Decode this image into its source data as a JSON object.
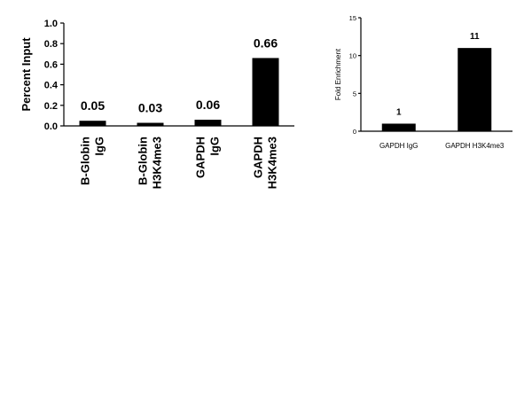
{
  "chart_data": [
    {
      "type": "bar",
      "title": "",
      "xlabel": "",
      "ylabel": "Percent Input",
      "ylim": [
        0,
        1.0
      ],
      "yticks": [
        "0.0",
        "0.2",
        "0.4",
        "0.6",
        "0.8",
        "1.0"
      ],
      "categories": [
        [
          "B-Globin",
          "IgG"
        ],
        [
          "B-Globin",
          "H3K4me3"
        ],
        [
          "GAPDH",
          "IgG"
        ],
        [
          "GAPDH",
          "H3K4me3"
        ]
      ],
      "values": [
        0.05,
        0.03,
        0.06,
        0.66
      ],
      "data_labels": [
        "0.05",
        "0.03",
        "0.06",
        "0.66"
      ],
      "bar_color": "#000000",
      "grid": false,
      "legend": "none"
    },
    {
      "type": "bar",
      "title": "",
      "xlabel": "",
      "ylabel": "Fold Enrichment",
      "ylim": [
        0,
        15
      ],
      "yticks": [
        "0",
        "5",
        "10",
        "15"
      ],
      "categories": [
        "GAPDH IgG",
        "GAPDH H3K4me3"
      ],
      "values": [
        1,
        11
      ],
      "data_labels": [
        "1",
        "11"
      ],
      "bar_color": "#000000",
      "grid": false,
      "legend": "none"
    }
  ]
}
